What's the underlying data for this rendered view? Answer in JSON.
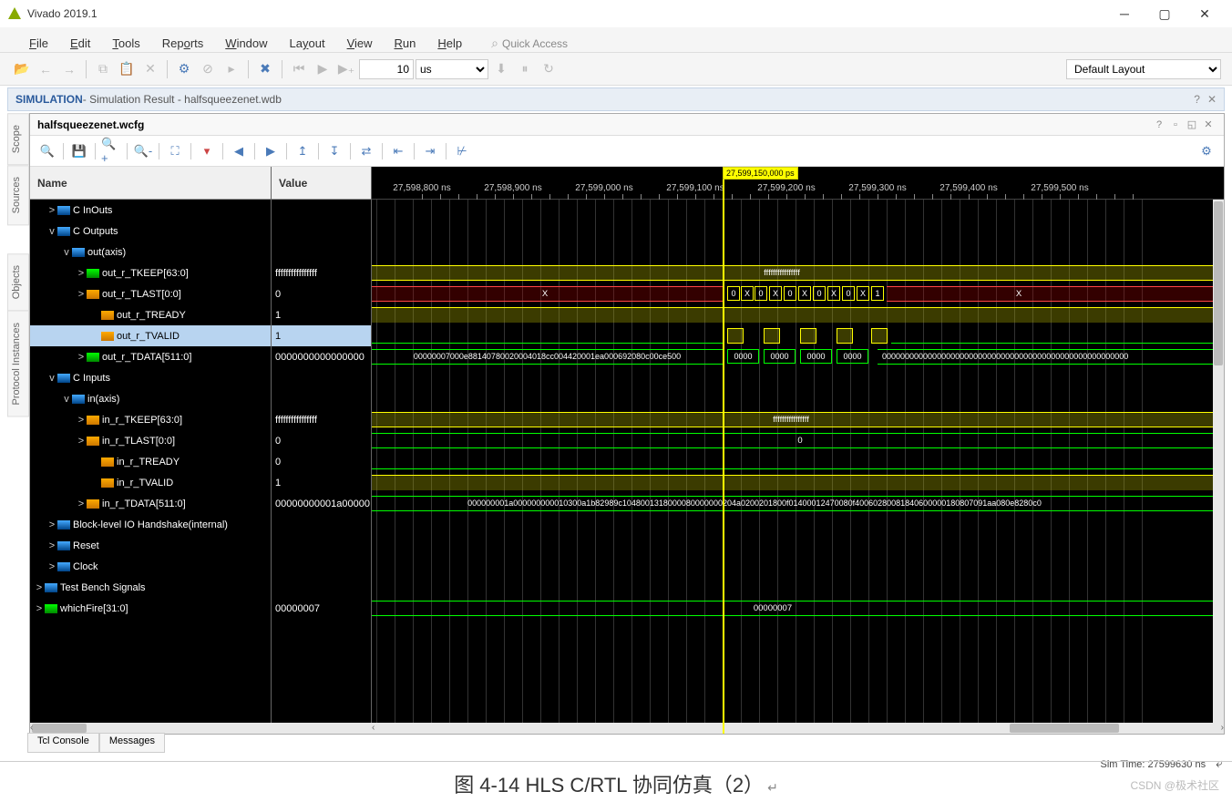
{
  "app": {
    "title": "Vivado 2019.1"
  },
  "menu": {
    "items": [
      "File",
      "Edit",
      "Tools",
      "Reports",
      "Window",
      "Layout",
      "View",
      "Run",
      "Help"
    ],
    "quick_access": "Quick Access"
  },
  "toolbar": {
    "time_value": "10",
    "time_unit": "us",
    "layout": "Default Layout"
  },
  "simbar": {
    "label": "SIMULATION",
    "text": " - Simulation Result - halfsqueezenet.wdb"
  },
  "sidetabs": [
    "Scope",
    "Sources",
    "Objects",
    "Protocol Instances"
  ],
  "wave": {
    "title": "halfsqueezenet.wcfg",
    "name_hdr": "Name",
    "value_hdr": "Value",
    "cursor_time": "27,599,150,000 ps",
    "ticks": [
      "27,598,800 ns",
      "27,598,900 ns",
      "27,599,000 ns",
      "27,599,100 ns",
      "27,599,200 ns",
      "27,599,300 ns",
      "27,599,400 ns",
      "27,599,500 ns"
    ],
    "signals": [
      {
        "name": "C InOuts",
        "indent": 1,
        "exp": ">",
        "icon": "b",
        "value": ""
      },
      {
        "name": "C Outputs",
        "indent": 1,
        "exp": "v",
        "icon": "b",
        "value": ""
      },
      {
        "name": "out(axis)",
        "indent": 2,
        "exp": "v",
        "icon": "b",
        "value": ""
      },
      {
        "name": "out_r_TKEEP[63:0]",
        "indent": 3,
        "exp": ">",
        "icon": "g",
        "value": "ffffffffffffffff"
      },
      {
        "name": "out_r_TLAST[0:0]",
        "indent": 3,
        "exp": ">",
        "icon": "o",
        "value": "0"
      },
      {
        "name": "out_r_TREADY",
        "indent": 4,
        "exp": "",
        "icon": "o",
        "value": "1"
      },
      {
        "name": "out_r_TVALID",
        "indent": 4,
        "exp": "",
        "icon": "o",
        "value": "1",
        "sel": true
      },
      {
        "name": "out_r_TDATA[511:0]",
        "indent": 3,
        "exp": ">",
        "icon": "g",
        "value": "0000000000000000"
      },
      {
        "name": "C Inputs",
        "indent": 1,
        "exp": "v",
        "icon": "b",
        "value": ""
      },
      {
        "name": "in(axis)",
        "indent": 2,
        "exp": "v",
        "icon": "b",
        "value": ""
      },
      {
        "name": "in_r_TKEEP[63:0]",
        "indent": 3,
        "exp": ">",
        "icon": "o",
        "value": "ffffffffffffffff"
      },
      {
        "name": "in_r_TLAST[0:0]",
        "indent": 3,
        "exp": ">",
        "icon": "o",
        "value": "0"
      },
      {
        "name": "in_r_TREADY",
        "indent": 4,
        "exp": "",
        "icon": "o",
        "value": "0"
      },
      {
        "name": "in_r_TVALID",
        "indent": 4,
        "exp": "",
        "icon": "o",
        "value": "1"
      },
      {
        "name": "in_r_TDATA[511:0]",
        "indent": 3,
        "exp": ">",
        "icon": "o",
        "value": "00000000001a00000"
      },
      {
        "name": "Block-level IO Handshake(internal)",
        "indent": 1,
        "exp": ">",
        "icon": "b",
        "value": ""
      },
      {
        "name": "Reset",
        "indent": 1,
        "exp": ">",
        "icon": "b",
        "value": ""
      },
      {
        "name": "Clock",
        "indent": 1,
        "exp": ">",
        "icon": "b",
        "value": ""
      },
      {
        "name": "Test Bench Signals",
        "indent": 0,
        "exp": ">",
        "icon": "b",
        "value": ""
      },
      {
        "name": "whichFire[31:0]",
        "indent": 0,
        "exp": ">",
        "icon": "g",
        "value": "00000007"
      }
    ],
    "waves": {
      "tkeep_text": "ffffffffffffffff",
      "tlast_x1": "X",
      "tlast_seq": [
        "0",
        "X",
        "0",
        "X",
        "0",
        "X",
        "0",
        "X",
        "0",
        "X",
        "1"
      ],
      "tlast_x2": "X",
      "tdata_left": "00000007000e88140780020004018cc004420001ea000692080c00ce500",
      "tdata_mid": [
        "0000",
        "0000",
        "0000",
        "0000"
      ],
      "tdata_right": "0000000000000000000000000000000000000000000000000000000000000000",
      "in_tkeep": "ffffffffffffffff",
      "in_tlast": "0",
      "in_tdata": "000000001a000000000010300a1b82989c1048001318000080000000204a0200201800f01400012470080f40060280081840600000180807091aa080e8280c0",
      "whichfire": "00000007"
    }
  },
  "bottomtabs": [
    "Tcl Console",
    "Messages"
  ],
  "status": {
    "simtime": "Sim Time: 27599630 ns"
  },
  "caption": "图 4-14 HLS C/RTL  协同仿真（2）",
  "watermark": "CSDN @极术社区"
}
